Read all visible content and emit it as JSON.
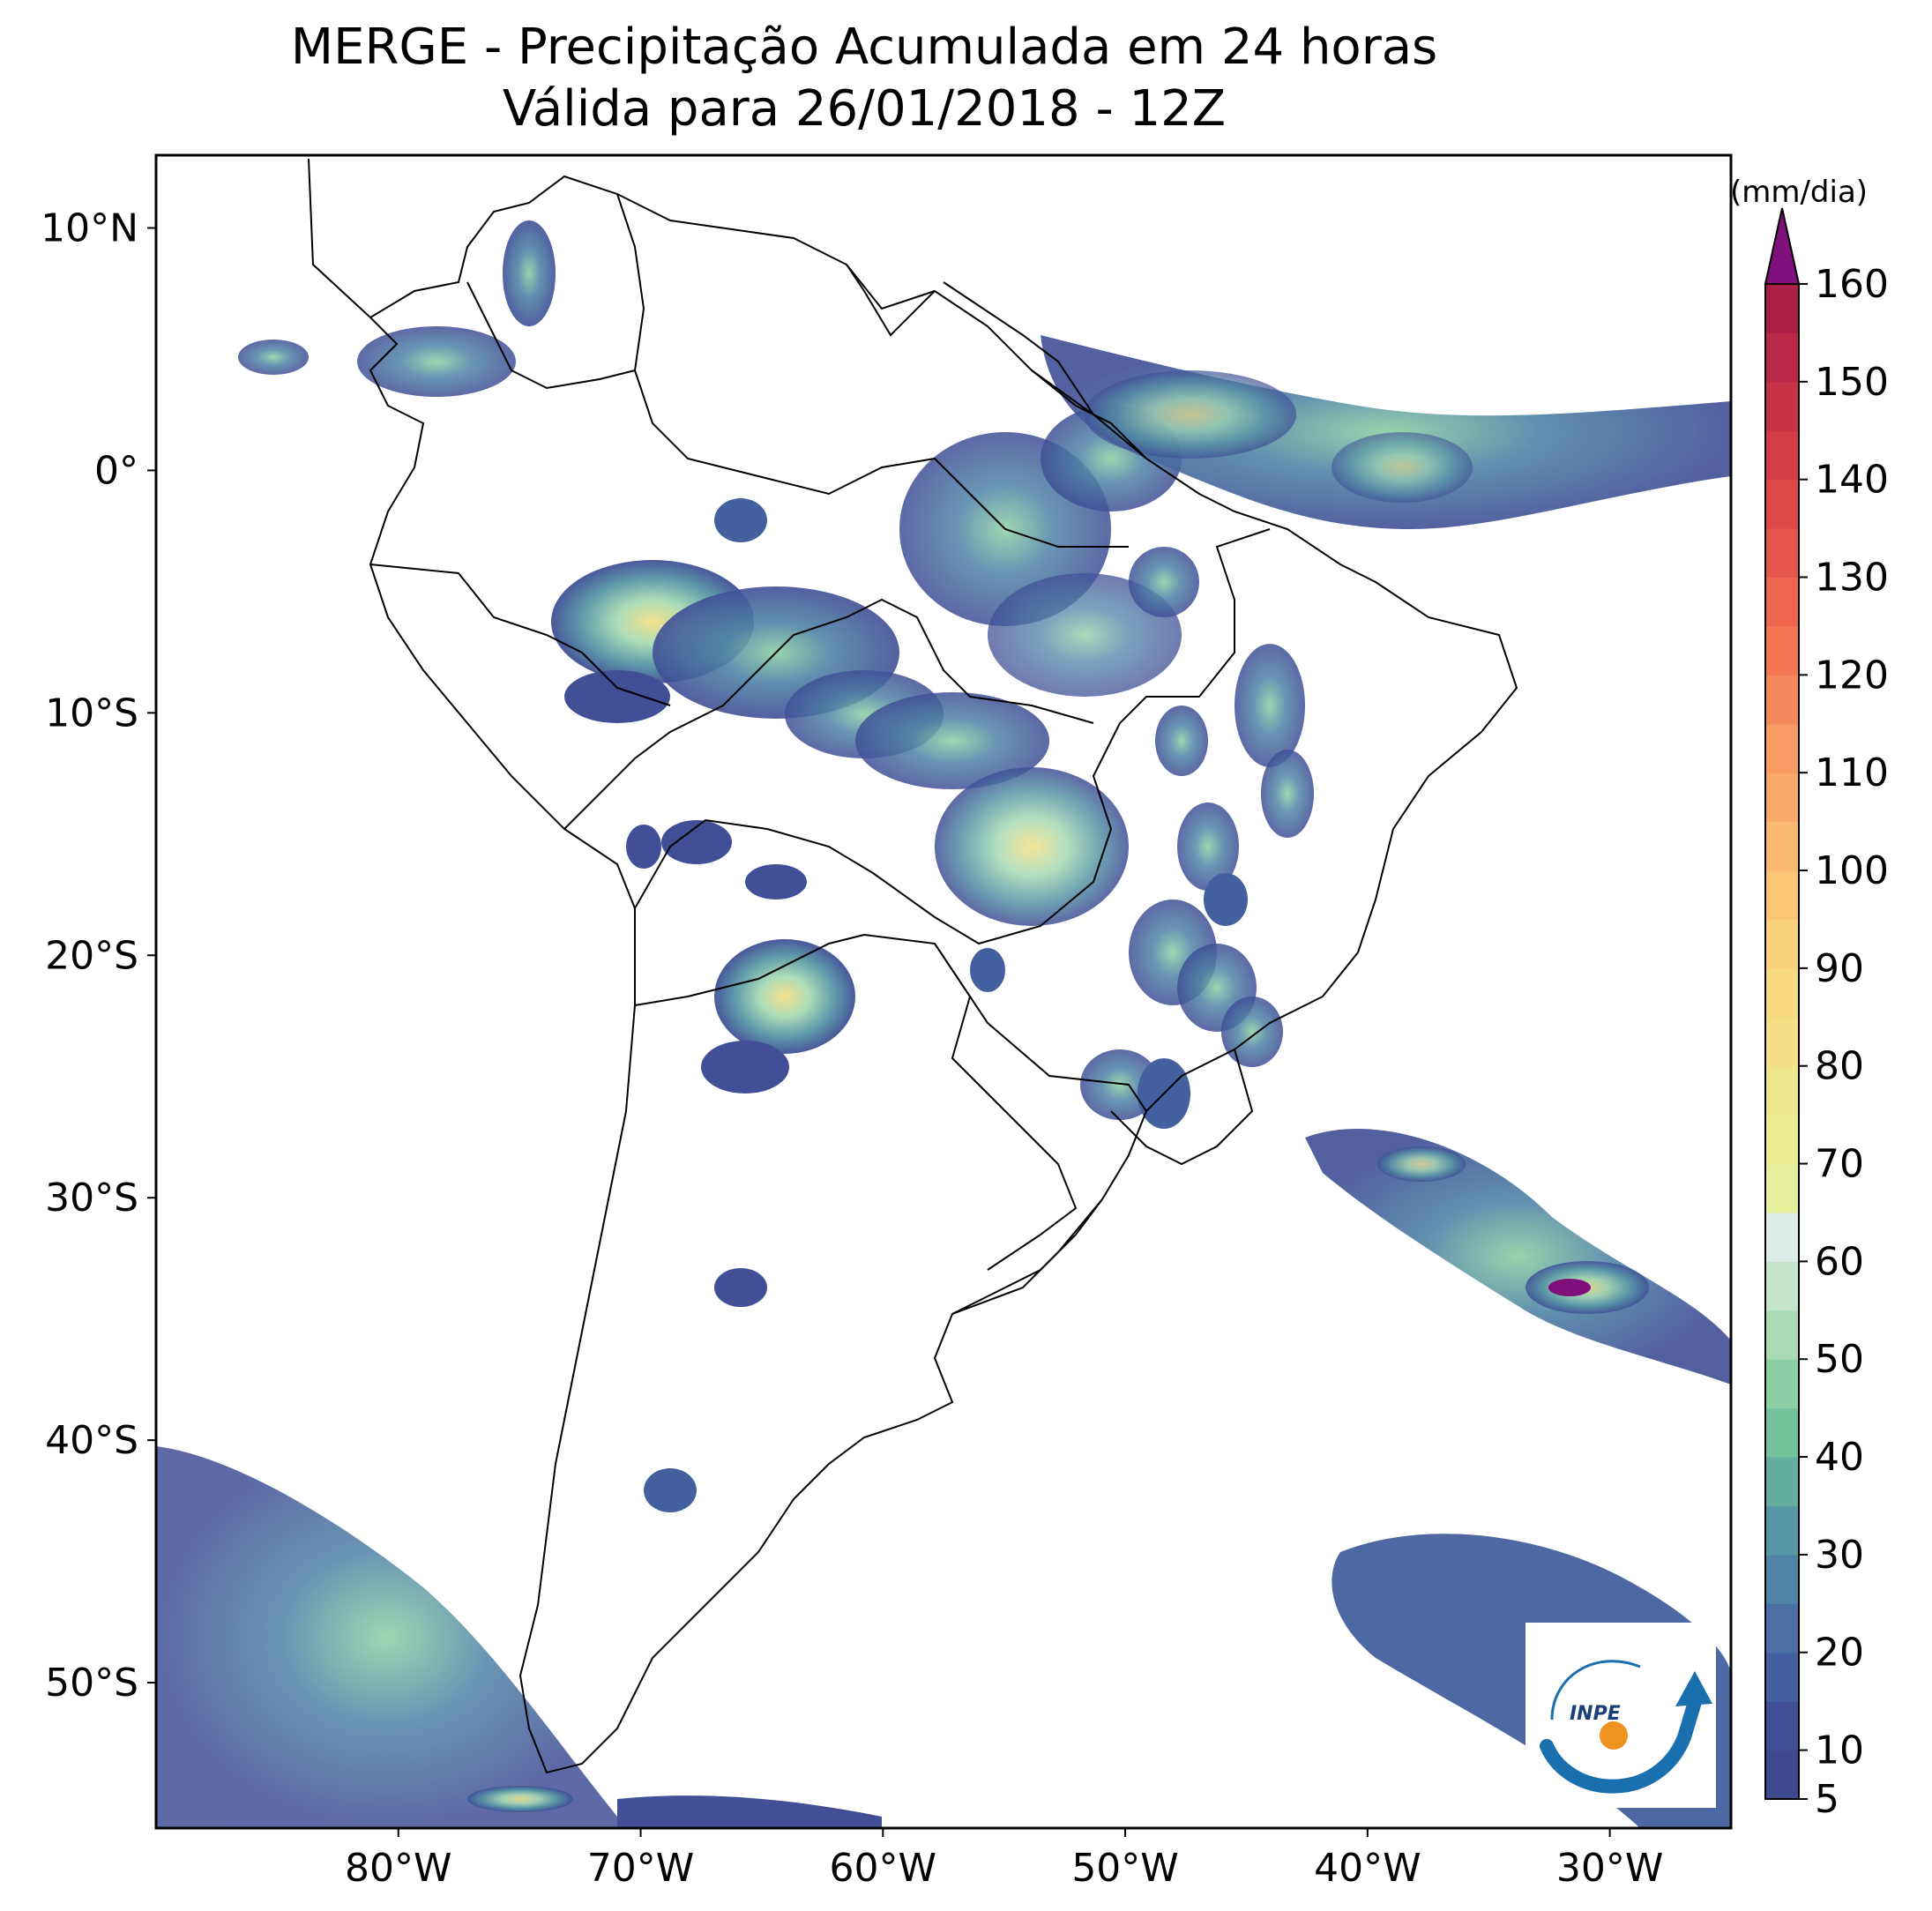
{
  "title": {
    "line1": "MERGE - Precipitação Acumulada em 24 horas",
    "line2": "Válida para 26/01/2018 - 12Z"
  },
  "map": {
    "lat_range": [
      -56,
      13
    ],
    "lon_range": [
      -90,
      -25
    ],
    "lat_ticks": [
      {
        "value": 10,
        "label": "10°N"
      },
      {
        "value": 0,
        "label": "0°"
      },
      {
        "value": -10,
        "label": "10°S"
      },
      {
        "value": -20,
        "label": "20°S"
      },
      {
        "value": -30,
        "label": "30°S"
      },
      {
        "value": -40,
        "label": "40°S"
      },
      {
        "value": -50,
        "label": "50°S"
      }
    ],
    "lon_ticks": [
      {
        "value": -80,
        "label": "80°W"
      },
      {
        "value": -70,
        "label": "70°W"
      },
      {
        "value": -60,
        "label": "60°W"
      },
      {
        "value": -50,
        "label": "50°W"
      },
      {
        "value": -40,
        "label": "40°W"
      },
      {
        "value": -30,
        "label": "30°W"
      }
    ]
  },
  "colorbar": {
    "unit": "(mm/dia)",
    "min": 5,
    "max": 160,
    "extend": "max",
    "ticks": [
      5,
      10,
      20,
      30,
      40,
      50,
      60,
      70,
      80,
      90,
      100,
      110,
      120,
      130,
      140,
      150,
      160
    ],
    "tick_labels": [
      "5",
      "10",
      "20",
      "30",
      "40",
      "50",
      "60",
      "70",
      "80",
      "90",
      "100",
      "110",
      "120",
      "130",
      "140",
      "150",
      "160"
    ],
    "extend_color": "#7f0f7a",
    "stops": [
      {
        "from": 5,
        "to": 10,
        "color": "#3e4a8e"
      },
      {
        "from": 10,
        "to": 15,
        "color": "#404f96"
      },
      {
        "from": 15,
        "to": 20,
        "color": "#44609e"
      },
      {
        "from": 20,
        "to": 25,
        "color": "#4a70a4"
      },
      {
        "from": 25,
        "to": 30,
        "color": "#4f83a6"
      },
      {
        "from": 30,
        "to": 35,
        "color": "#5797a6"
      },
      {
        "from": 35,
        "to": 40,
        "color": "#64ad9f"
      },
      {
        "from": 40,
        "to": 45,
        "color": "#73c29b"
      },
      {
        "from": 45,
        "to": 50,
        "color": "#8ccfa4"
      },
      {
        "from": 50,
        "to": 55,
        "color": "#a9dbb4"
      },
      {
        "from": 55,
        "to": 60,
        "color": "#c4e5cc"
      },
      {
        "from": 60,
        "to": 65,
        "color": "#dcece6"
      },
      {
        "from": 65,
        "to": 70,
        "color": "#e6ef9b"
      },
      {
        "from": 70,
        "to": 75,
        "color": "#ecec94"
      },
      {
        "from": 75,
        "to": 80,
        "color": "#f0e68e"
      },
      {
        "from": 80,
        "to": 85,
        "color": "#f4df86"
      },
      {
        "from": 85,
        "to": 90,
        "color": "#f7d97f"
      },
      {
        "from": 90,
        "to": 95,
        "color": "#f9d17a"
      },
      {
        "from": 95,
        "to": 100,
        "color": "#fac676"
      },
      {
        "from": 100,
        "to": 105,
        "color": "#fab971"
      },
      {
        "from": 105,
        "to": 110,
        "color": "#f9aa6a"
      },
      {
        "from": 110,
        "to": 115,
        "color": "#f89a63"
      },
      {
        "from": 115,
        "to": 120,
        "color": "#f6895c"
      },
      {
        "from": 120,
        "to": 125,
        "color": "#f37755"
      },
      {
        "from": 125,
        "to": 130,
        "color": "#ee6650"
      },
      {
        "from": 130,
        "to": 135,
        "color": "#e7564c"
      },
      {
        "from": 135,
        "to": 140,
        "color": "#df4849"
      },
      {
        "from": 140,
        "to": 145,
        "color": "#d43d48"
      },
      {
        "from": 145,
        "to": 150,
        "color": "#c73247"
      },
      {
        "from": 150,
        "to": 155,
        "color": "#b92846"
      },
      {
        "from": 155,
        "to": 160,
        "color": "#ab1f45"
      }
    ]
  },
  "logo": {
    "text": "INPE",
    "colors": {
      "arc": "#1a6fae",
      "dot": "#f0921e"
    }
  }
}
